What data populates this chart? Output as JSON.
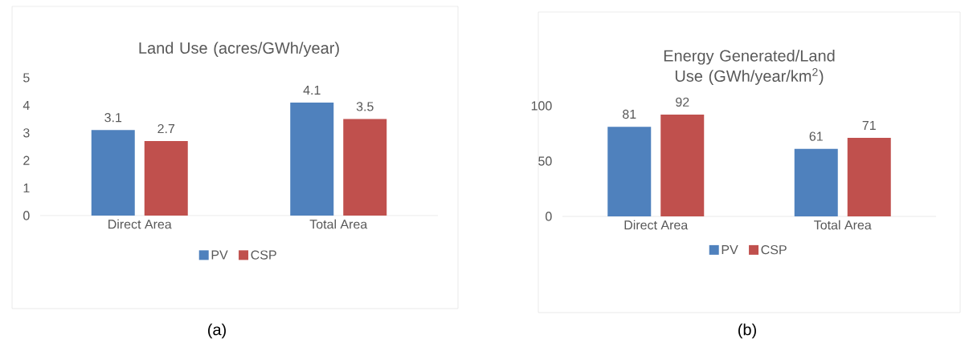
{
  "chart_data": [
    {
      "type": "bar",
      "title": "Land Use (acres/GWh/year)",
      "categories": [
        "Direct Area",
        "Total Area"
      ],
      "series": [
        {
          "name": "PV",
          "color": "#4f81bd",
          "values": [
            3.1,
            4.1
          ]
        },
        {
          "name": "CSP",
          "color": "#c0504d",
          "values": [
            2.7,
            3.5
          ]
        }
      ],
      "ylim": [
        0,
        5
      ],
      "yticks": [
        0,
        1,
        2,
        3,
        4,
        5
      ],
      "data_labels": true,
      "legend": "bottom",
      "annotations": [
        "(a)"
      ]
    },
    {
      "type": "bar",
      "title": "Energy Generated/Land Use (GWh/year/km$^{2}$)",
      "categories": [
        "Direct Area",
        "Total Area"
      ],
      "series": [
        {
          "name": "PV",
          "color": "#4f81bd",
          "values": [
            81,
            61
          ]
        },
        {
          "name": "CSP",
          "color": "#c0504d",
          "values": [
            92,
            71
          ]
        }
      ],
      "ylim": [
        0,
        100
      ],
      "yticks": [
        0,
        50,
        100
      ],
      "data_labels": true,
      "legend": "bottom",
      "annotations": [
        "(b)"
      ]
    }
  ]
}
